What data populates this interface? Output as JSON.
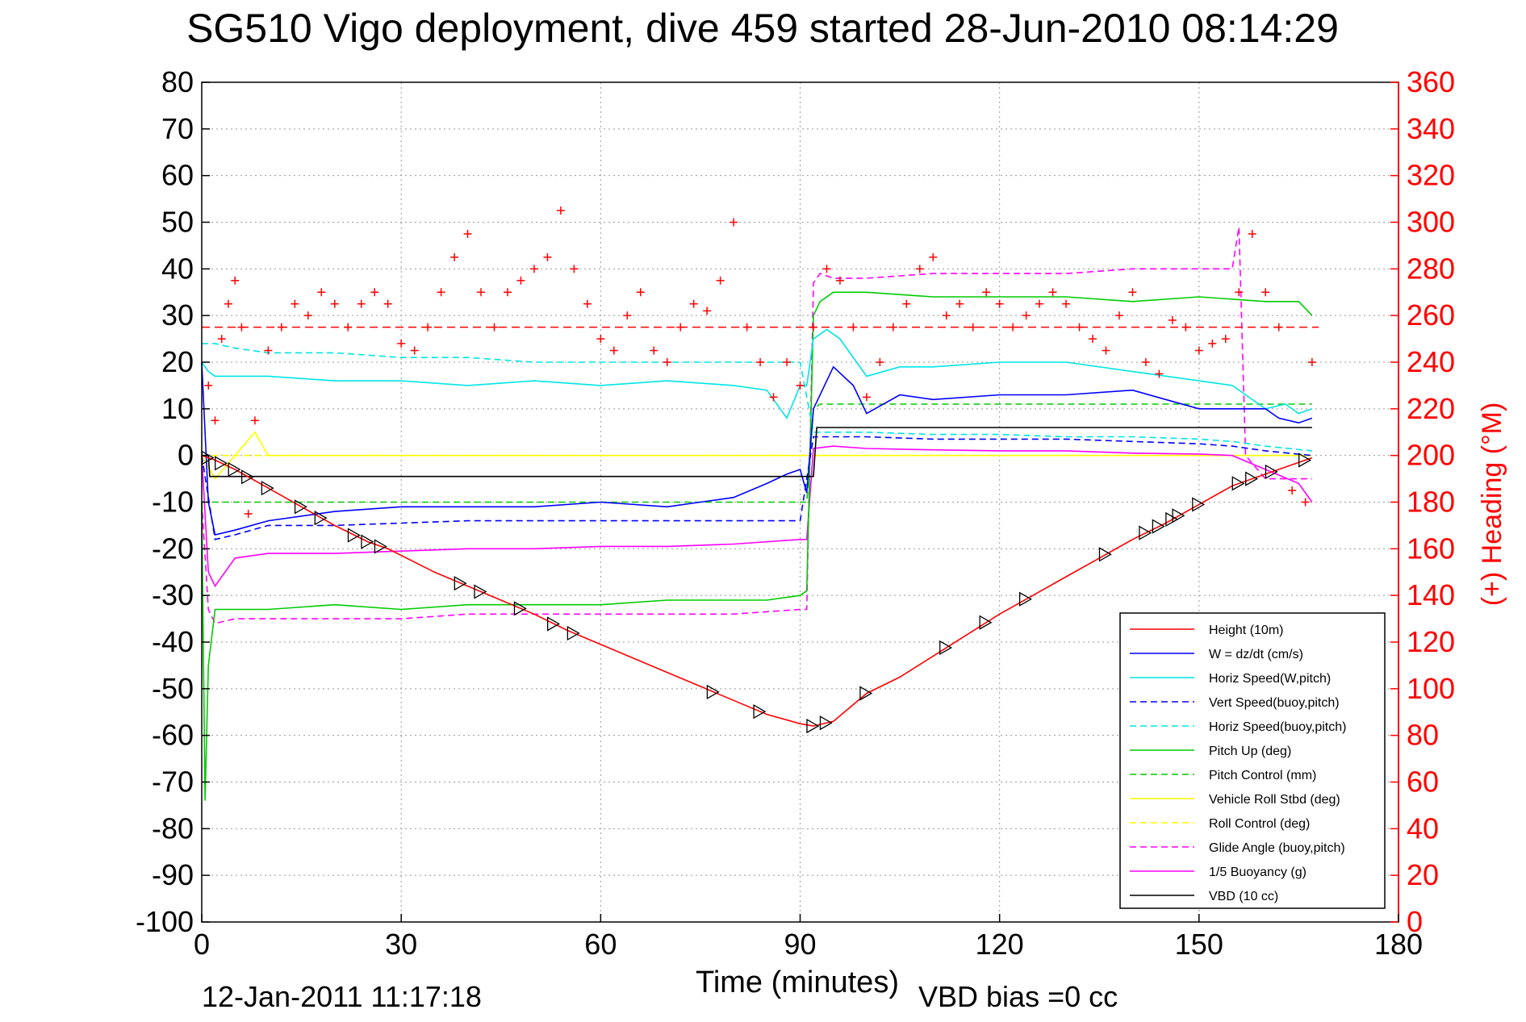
{
  "chart_data": {
    "type": "line",
    "title": "SG510 Vigo deployment, dive 459 started 28-Jun-2010 08:14:29",
    "xlabel": "Time (minutes)",
    "ylabel_right": "(+) Heading (°M)",
    "footer_timestamp": "12-Jan-2011 11:17:18",
    "footer_note": "VBD bias =0 cc",
    "xlim": [
      0,
      180
    ],
    "ylim_left": [
      -100,
      80
    ],
    "ylim_right": [
      0,
      360
    ],
    "grid": true,
    "legend_position": "bottom-right",
    "x_ticks": [
      "0",
      "30",
      "60",
      "90",
      "120",
      "150",
      "180"
    ],
    "y_ticks_left": [
      "80",
      "70",
      "60",
      "50",
      "40",
      "30",
      "20",
      "10",
      "0",
      "-10",
      "-20",
      "-30",
      "-40",
      "-50",
      "-60",
      "-70",
      "-80",
      "-90",
      "-100"
    ],
    "y_ticks_right": [
      "360",
      "340",
      "320",
      "300",
      "280",
      "260",
      "240",
      "220",
      "200",
      "180",
      "160",
      "140",
      "120",
      "100",
      "80",
      "60",
      "40",
      "20",
      "0"
    ],
    "series": [
      {
        "name": "Height (10m)",
        "color": "#ff0000",
        "style": "solid",
        "x": [
          0,
          2,
          5,
          10,
          15,
          20,
          25,
          28,
          35,
          40,
          45,
          50,
          55,
          60,
          65,
          70,
          75,
          80,
          85,
          90,
          92,
          95,
          100,
          105,
          110,
          115,
          120,
          125,
          130,
          135,
          140,
          145,
          150,
          155,
          160,
          165,
          167
        ],
        "y": [
          0,
          -1,
          -3,
          -7,
          -11,
          -15,
          -18.5,
          -20,
          -25,
          -28,
          -31,
          -34,
          -37.5,
          -40.5,
          -43.5,
          -46.5,
          -49.5,
          -52.5,
          -55.5,
          -57.5,
          -58,
          -57,
          -51,
          -47.5,
          -43,
          -38.5,
          -34,
          -30,
          -26,
          -22,
          -18,
          -14.5,
          -10.5,
          -6.5,
          -4,
          -1.5,
          -0.5
        ]
      },
      {
        "name": "W = dz/dt (cm/s)",
        "color": "#0000ff",
        "style": "solid",
        "x": [
          0,
          1,
          2,
          5,
          10,
          20,
          30,
          40,
          50,
          60,
          70,
          75,
          80,
          85,
          88,
          90,
          91,
          92,
          95,
          98,
          100,
          105,
          110,
          120,
          130,
          140,
          145,
          150,
          155,
          160,
          162,
          165,
          167
        ],
        "y": [
          20,
          -10,
          -17,
          -16,
          -14,
          -12,
          -11,
          -11,
          -11,
          -10,
          -11,
          -10,
          -9,
          -6,
          -4,
          -3,
          -8,
          10,
          19,
          15,
          9,
          13,
          12,
          13,
          13,
          14,
          12,
          10,
          10,
          10,
          8,
          7,
          8
        ]
      },
      {
        "name": "Horiz Speed(W,pitch)",
        "color": "#00e5e5",
        "style": "solid",
        "x": [
          0,
          1,
          2,
          5,
          10,
          20,
          30,
          40,
          50,
          60,
          70,
          80,
          85,
          88,
          90,
          91,
          92,
          94,
          96,
          100,
          105,
          110,
          120,
          130,
          140,
          150,
          155,
          160,
          163,
          165,
          167
        ],
        "y": [
          20,
          18,
          17,
          17,
          17,
          16,
          16,
          15,
          16,
          15,
          16,
          15,
          14,
          8,
          15,
          15,
          25,
          27,
          25,
          17,
          19,
          19,
          20,
          20,
          18,
          16,
          15,
          10,
          11,
          9,
          10
        ]
      },
      {
        "name": "Vert Speed(buoy,pitch)",
        "color": "#0000ff",
        "style": "dashed",
        "x": [
          0,
          2,
          5,
          10,
          20,
          30,
          40,
          50,
          60,
          70,
          80,
          90,
          92,
          95,
          100,
          110,
          120,
          130,
          140,
          150,
          155,
          160,
          167
        ],
        "y": [
          0,
          -18,
          -17,
          -15,
          -15,
          -14.5,
          -14,
          -14,
          -14,
          -14,
          -14,
          -14,
          4,
          4,
          4,
          3.5,
          3.5,
          3.5,
          3,
          2.5,
          2,
          1,
          0
        ]
      },
      {
        "name": "Horiz Speed(buoy,pitch)",
        "color": "#00e5e5",
        "style": "dashed",
        "x": [
          0,
          2,
          5,
          10,
          20,
          30,
          40,
          50,
          60,
          70,
          80,
          90,
          92,
          95,
          100,
          110,
          120,
          130,
          140,
          150,
          155,
          160,
          167
        ],
        "y": [
          24,
          24,
          23,
          22,
          22,
          21,
          21,
          20,
          20,
          20,
          20,
          20,
          5,
          5,
          5,
          4.5,
          4.5,
          4,
          4,
          3.5,
          3,
          2,
          1
        ]
      },
      {
        "name": "Pitch Up (deg)",
        "color": "#00cc00",
        "style": "solid",
        "x": [
          0,
          0.5,
          1,
          2,
          5,
          10,
          20,
          30,
          40,
          50,
          60,
          70,
          80,
          85,
          90,
          91,
          92,
          93,
          95,
          100,
          110,
          120,
          130,
          140,
          150,
          160,
          165,
          167
        ],
        "y": [
          -10,
          -74,
          -45,
          -33,
          -33,
          -33,
          -32,
          -33,
          -32,
          -32,
          -32,
          -31,
          -31,
          -31,
          -30,
          -29,
          30,
          33,
          35,
          35,
          34,
          34,
          34,
          33,
          34,
          33,
          33,
          30
        ]
      },
      {
        "name": "Pitch Control (mm)",
        "color": "#00cc00",
        "style": "dashed",
        "x": [
          0,
          2,
          10,
          30,
          60,
          90,
          91,
          92,
          93,
          120,
          150,
          167
        ],
        "y": [
          -10,
          -10,
          -10,
          -10,
          -10,
          -10,
          -10,
          10,
          11,
          11,
          11,
          11
        ]
      },
      {
        "name": "Vehicle Roll Stbd (deg)",
        "color": "#ffff00",
        "style": "solid",
        "x": [
          0,
          2,
          5,
          8,
          10,
          20,
          30,
          40,
          50,
          60,
          70,
          80,
          90,
          95,
          100,
          110,
          120,
          130,
          140,
          150,
          160,
          167
        ],
        "y": [
          0,
          -5,
          0,
          5,
          0,
          0,
          0,
          0,
          0,
          0,
          0,
          0,
          0,
          0,
          0,
          0,
          0,
          0,
          0,
          0,
          0,
          0
        ]
      },
      {
        "name": "Roll Control (deg)",
        "color": "#ffff00",
        "style": "dashed",
        "x": [
          0,
          30,
          60,
          90,
          120,
          150,
          167
        ],
        "y": [
          0,
          0,
          0,
          0,
          0,
          0,
          0
        ]
      },
      {
        "name": "Glide Angle (buoy,pitch)",
        "color": "#ff00ff",
        "style": "dashed",
        "x": [
          0,
          1,
          2,
          5,
          10,
          20,
          30,
          40,
          50,
          60,
          70,
          80,
          90,
          91,
          92,
          93,
          95,
          100,
          110,
          120,
          130,
          140,
          150,
          155,
          156,
          157,
          160,
          167
        ],
        "y": [
          -10,
          -33,
          -36,
          -35,
          -35,
          -35,
          -35,
          -34,
          -34,
          -34,
          -34,
          -34,
          -33,
          -33,
          37,
          39,
          38,
          38,
          39,
          39,
          39,
          40,
          40,
          40,
          49,
          0,
          -5,
          -5
        ]
      },
      {
        "name": "1/5 Buoyancy (g)",
        "color": "#ff00ff",
        "style": "solid",
        "x": [
          0,
          1,
          2,
          5,
          10,
          20,
          30,
          40,
          50,
          60,
          70,
          80,
          90,
          91,
          92,
          95,
          100,
          110,
          120,
          130,
          140,
          150,
          155,
          160,
          165,
          167
        ],
        "y": [
          0,
          -25,
          -28,
          -22,
          -21,
          -21,
          -20.5,
          -20,
          -20,
          -19.5,
          -19.5,
          -19,
          -18,
          -18,
          1.5,
          2,
          1.5,
          1.2,
          1,
          1,
          0.5,
          0.3,
          0,
          -3,
          -6,
          -10
        ]
      },
      {
        "name": "VBD (10 cc)",
        "color": "#000000",
        "style": "solid",
        "x": [
          0,
          1,
          1.2,
          91,
          92,
          92.5,
          167
        ],
        "y": [
          0,
          0,
          -4.5,
          -4.5,
          -4.5,
          6,
          6
        ]
      }
    ],
    "markers_triangles_x": [
      1,
      3,
      5,
      7,
      10,
      15,
      18,
      23,
      25,
      27,
      39,
      42,
      48,
      53,
      56,
      77,
      84,
      92,
      94,
      100,
      112,
      118,
      124,
      136,
      142,
      144,
      146,
      147,
      150,
      156,
      158,
      161,
      166
    ],
    "heading_right_axis": {
      "color": "#ff0000",
      "mean_line": 255,
      "x": [
        1,
        2,
        3,
        4,
        5,
        6,
        7,
        8,
        10,
        12,
        14,
        16,
        18,
        20,
        22,
        24,
        26,
        28,
        30,
        32,
        34,
        36,
        38,
        40,
        42,
        44,
        46,
        48,
        50,
        52,
        54,
        56,
        58,
        60,
        62,
        64,
        66,
        68,
        70,
        72,
        74,
        76,
        78,
        80,
        82,
        84,
        86,
        88,
        90,
        92,
        94,
        96,
        98,
        100,
        102,
        104,
        106,
        108,
        110,
        112,
        114,
        116,
        118,
        120,
        122,
        124,
        126,
        128,
        130,
        132,
        134,
        136,
        138,
        140,
        142,
        144,
        146,
        148,
        150,
        152,
        154,
        156,
        158,
        160,
        162,
        164,
        166,
        167
      ],
      "y": [
        230,
        215,
        250,
        265,
        275,
        255,
        175,
        215,
        245,
        255,
        265,
        260,
        270,
        265,
        255,
        265,
        270,
        265,
        248,
        245,
        255,
        270,
        285,
        295,
        270,
        255,
        270,
        275,
        280,
        285,
        305,
        280,
        265,
        250,
        245,
        260,
        270,
        245,
        240,
        255,
        265,
        262,
        275,
        300,
        255,
        240,
        225,
        240,
        230,
        255,
        280,
        275,
        255,
        225,
        240,
        255,
        265,
        280,
        285,
        260,
        265,
        255,
        270,
        265,
        255,
        260,
        265,
        270,
        265,
        255,
        250,
        245,
        260,
        270,
        240,
        235,
        258,
        255,
        245,
        248,
        250,
        270,
        295,
        270,
        255,
        185,
        180,
        240
      ]
    }
  }
}
